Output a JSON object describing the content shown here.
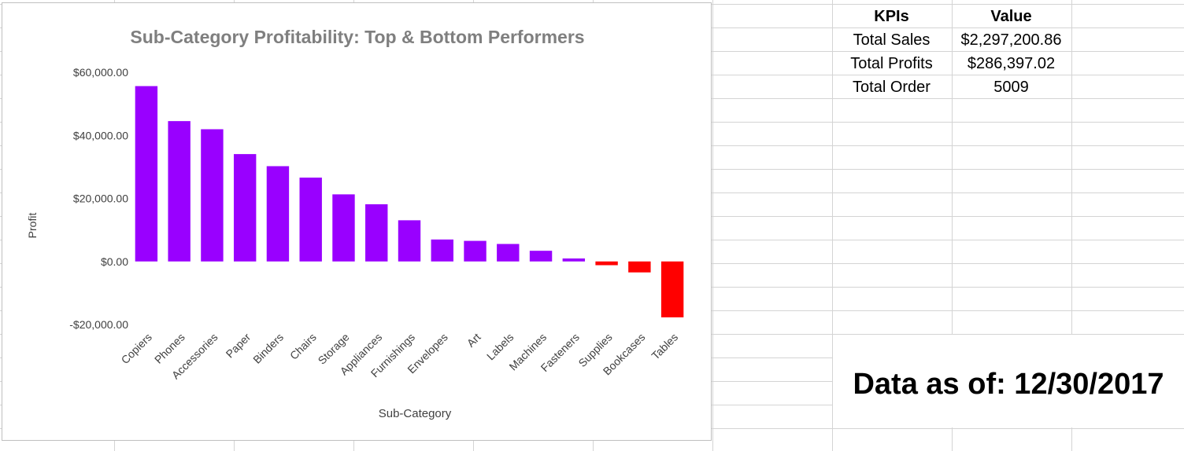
{
  "kpi_table": {
    "headers": [
      "KPIs",
      "Value"
    ],
    "rows": [
      {
        "label": "Total Sales",
        "value": "$2,297,200.86"
      },
      {
        "label": "Total Profits",
        "value": "$286,397.02"
      },
      {
        "label": "Total Order",
        "value": "5009"
      }
    ]
  },
  "as_of": {
    "text": "Data as of: 12/30/2017"
  },
  "chart_data": {
    "type": "bar",
    "title": "Sub-Category Profitability: Top & Bottom Performers",
    "xlabel": "Sub-Category",
    "ylabel": "Profit",
    "categories": [
      "Copiers",
      "Phones",
      "Accessories",
      "Paper",
      "Binders",
      "Chairs",
      "Storage",
      "Appliances",
      "Furnishings",
      "Envelopes",
      "Art",
      "Labels",
      "Machines",
      "Fasteners",
      "Supplies",
      "Bookcases",
      "Tables"
    ],
    "values": [
      55618,
      44516,
      41937,
      34054,
      30222,
      26590,
      21279,
      18138,
      13059,
      6964,
      6528,
      5546,
      3385,
      950,
      -1189,
      -3473,
      -17725
    ],
    "ylim": [
      -20000,
      60000
    ],
    "yticks": [
      -20000,
      0,
      20000,
      40000,
      60000
    ],
    "ytick_labels": [
      "-$20,000.00",
      "$0.00",
      "$20,000.00",
      "$40,000.00",
      "$60,000.00"
    ],
    "colors": {
      "positive": "#9900ff",
      "negative": "#ff0000"
    },
    "gridlines": false,
    "legend": "none"
  }
}
